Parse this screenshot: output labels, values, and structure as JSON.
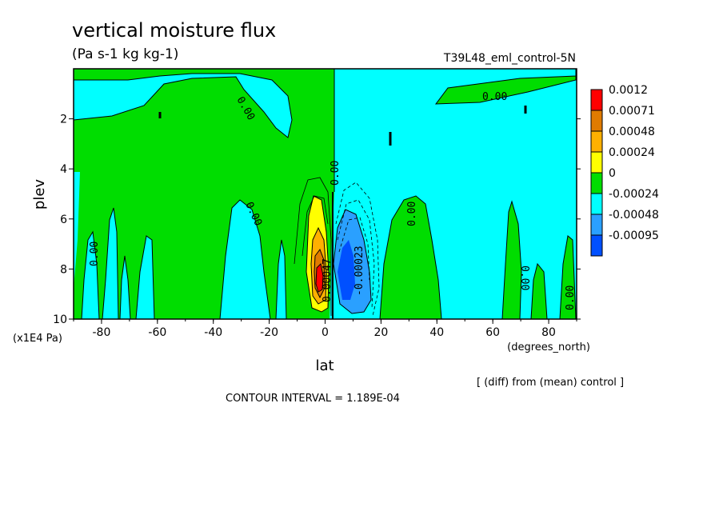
{
  "chart_data": {
    "type": "filled-contour",
    "title": "vertical moisture flux",
    "units": "(Pa s-1 kg kg-1)",
    "run_label": "T39L48_eml_control-5N",
    "xlabel": "lat",
    "x_units": "(degrees_north)",
    "ylabel": "plev",
    "y_units": "(x1E4 Pa)",
    "xlim": [
      -90,
      90
    ],
    "ylim": [
      10,
      0
    ],
    "x_ticks": [
      "-80",
      "-60",
      "-40",
      "-20",
      "0",
      "20",
      "40",
      "60",
      "80"
    ],
    "y_ticks": [
      "2",
      "4",
      "6",
      "8",
      "10"
    ],
    "colorbar": {
      "labels": [
        "0.0012",
        "0.00071",
        "0.00048",
        "0.00024",
        "0",
        "-0.00024",
        "-0.00048",
        "-0.00095"
      ],
      "colors": [
        "#ff0000",
        "#e07b00",
        "#ffb000",
        "#ffff00",
        "#00dd00",
        "#00ffff",
        "#2aa0ff",
        "#0050ff"
      ]
    },
    "contour_labels": [
      "0.00",
      "0.00",
      "0.00",
      "0.00",
      "0.00",
      "0.00",
      "0.00",
      "0.00",
      "0.00",
      "0.00",
      "-0.00023",
      "0.00047"
    ],
    "note": "[ (diff) from (mean) control ]",
    "contour_interval": "CONTOUR INTERVAL = 1.189E-04",
    "colors": {
      "pos_small": "#00dd00",
      "neg_small": "#00ffff",
      "pos_mid": "#ffff00",
      "pos_high": "#ffb000",
      "pos_higher": "#e07b00",
      "pos_max": "#ff0000",
      "neg_mid": "#2aa0ff",
      "neg_max": "#0050ff"
    }
  }
}
